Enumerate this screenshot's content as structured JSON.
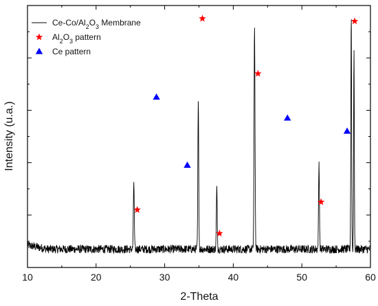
{
  "chart_data": {
    "type": "line",
    "xlabel": "2-Theta",
    "ylabel": "Intensity (u.a.)",
    "xlim": [
      10,
      60
    ],
    "ylim": [
      0,
      100
    ],
    "x_ticks": [
      10,
      20,
      30,
      40,
      50,
      60
    ],
    "y_tick_labels": "none",
    "grid": false,
    "legend_placement": "top-left",
    "series": [
      {
        "name": "Ce-Co/Al2O3 Membrane",
        "name_parts": [
          "Ce-Co/Al",
          "2",
          "O",
          "3",
          " Membrane"
        ],
        "type": "line",
        "color": "#000000",
        "baseline": 7,
        "noise_amplitude": 1.6,
        "peaks": [
          {
            "x": 25.5,
            "height": 26,
            "width": 0.09
          },
          {
            "x": 34.9,
            "height": 56,
            "width": 0.09
          },
          {
            "x": 37.6,
            "height": 23,
            "width": 0.09
          },
          {
            "x": 43.1,
            "height": 84,
            "width": 0.1
          },
          {
            "x": 52.5,
            "height": 33,
            "width": 0.09
          },
          {
            "x": 57.2,
            "height": 90,
            "width": 0.08
          },
          {
            "x": 57.6,
            "height": 78,
            "width": 0.07
          }
        ]
      },
      {
        "name": "Al2O3 pattern",
        "name_parts": [
          "Al",
          "2",
          "O",
          "3",
          " pattern"
        ],
        "type": "scatter",
        "marker": "star",
        "color": "#ff0000",
        "x": [
          26.0,
          35.5,
          38.0,
          43.6,
          52.8,
          57.7
        ],
        "y": [
          22,
          95,
          13,
          74,
          25,
          94
        ]
      },
      {
        "name": "Ce pattern",
        "name_parts": [
          "Ce pattern"
        ],
        "type": "scatter",
        "marker": "triangle",
        "color": "#0000ff",
        "x": [
          28.8,
          33.3,
          47.9,
          56.6
        ],
        "y": [
          65,
          39,
          57,
          52
        ]
      }
    ]
  }
}
